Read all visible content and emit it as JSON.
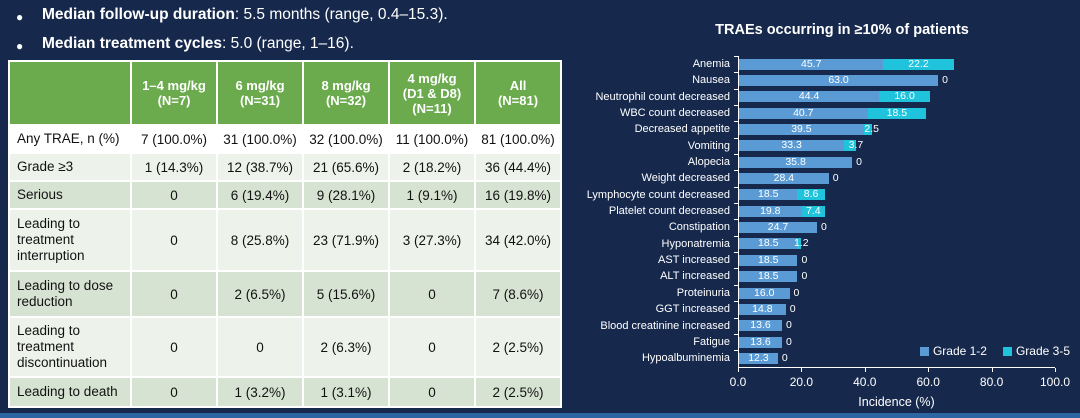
{
  "bullets": [
    {
      "bold": "Median follow-up duration",
      "rest": ": 5.5 months (range, 0.4–15.3)."
    },
    {
      "bold": "Median treatment cycles",
      "rest": ": 5.0 (range, 1–16)."
    }
  ],
  "table": {
    "columns": [
      "",
      "1–4 mg/kg\n(N=7)",
      "6 mg/kg\n(N=31)",
      "8 mg/kg\n(N=32)",
      "4 mg/kg\n(D1 & D8)\n(N=11)",
      "All\n(N=81)"
    ],
    "rows": [
      {
        "label": "Any TRAE, n (%)",
        "values": [
          "7 (100.0%)",
          "31 (100.0%)",
          "32 (100.0%)",
          "11 (100.0%)",
          "81 (100.0%)"
        ]
      },
      {
        "label": "Grade ≥3",
        "values": [
          "1 (14.3%)",
          "12 (38.7%)",
          "21 (65.6%)",
          "2 (18.2%)",
          "36 (44.4%)"
        ]
      },
      {
        "label": "Serious",
        "values": [
          "0",
          "6 (19.4%)",
          "9 (28.1%)",
          "1 (9.1%)",
          "16 (19.8%)"
        ]
      },
      {
        "label": "Leading to treatment interruption",
        "values": [
          "0",
          "8 (25.8%)",
          "23 (71.9%)",
          "3 (27.3%)",
          "34 (42.0%)"
        ]
      },
      {
        "label": "Leading to dose reduction",
        "values": [
          "0",
          "2 (6.5%)",
          "5 (15.6%)",
          "0",
          "7 (8.6%)"
        ]
      },
      {
        "label": "Leading to treatment discontinuation",
        "values": [
          "0",
          "0",
          "2 (6.3%)",
          "0",
          "2 (2.5%)"
        ]
      },
      {
        "label": "Leading to death",
        "values": [
          "0",
          "1 (3.2%)",
          "1 (3.1%)",
          "0",
          "2 (2.5%)"
        ]
      }
    ]
  },
  "chart_data": {
    "type": "bar",
    "orientation": "horizontal",
    "stacked": true,
    "title": "TRAEs occurring in ≥10% of patients",
    "xlabel": "Incidence (%)",
    "xlim": [
      0,
      100
    ],
    "xticks": [
      "0.0",
      "20.0",
      "40.0",
      "60.0",
      "80.0",
      "100.0"
    ],
    "legend_position": "inside-bottom-right",
    "grid": false,
    "categories": [
      "Anemia",
      "Nausea",
      "Neutrophil count decreased",
      "WBC count decreased",
      "Decreased appetite",
      "Vomiting",
      "Alopecia",
      "Weight decreased",
      "Lymphocyte count decreased",
      "Platelet count decreased",
      "Constipation",
      "Hyponatremia",
      "AST increased",
      "ALT increased",
      "Proteinuria",
      "GGT increased",
      "Blood creatinine increased",
      "Fatigue",
      "Hypoalbuminemia"
    ],
    "series": [
      {
        "name": "Grade 1-2",
        "color": "#5b9bd5",
        "values": [
          45.7,
          63.0,
          44.4,
          40.7,
          39.5,
          33.3,
          35.8,
          28.4,
          18.5,
          19.8,
          24.7,
          18.5,
          18.5,
          18.5,
          16.0,
          14.8,
          13.6,
          13.6,
          12.3
        ]
      },
      {
        "name": "Grade 3-5",
        "color": "#1fc3dc",
        "values": [
          22.2,
          0,
          16.0,
          18.5,
          2.5,
          3.7,
          0,
          0,
          8.6,
          7.4,
          0,
          1.2,
          0,
          0,
          0,
          0,
          0,
          0,
          0
        ]
      }
    ]
  },
  "colors": {
    "background": "#16294d",
    "bottom_strip": "#2b66a3",
    "table_header_green": "#6bab4e",
    "row_pale": "#edf3ea",
    "row_green": "#d7e3d2",
    "grade12_blue": "#5b9bd5",
    "grade35_cyan": "#1fc3dc",
    "text_white": "#ffffff"
  }
}
